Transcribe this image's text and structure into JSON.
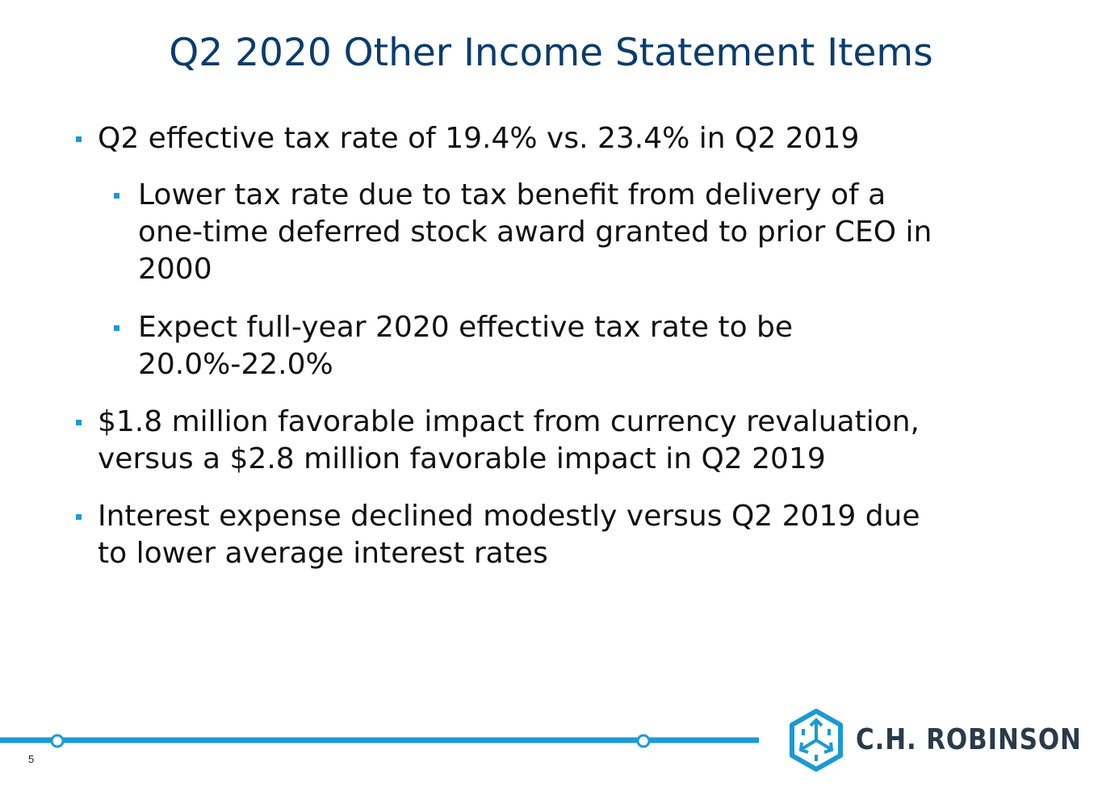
{
  "slide": {
    "title": "Q2 2020 Other Income Statement Items",
    "page_number": "5"
  },
  "bullets": [
    {
      "level": 1,
      "text": "Q2 effective tax rate of 19.4% vs. 23.4% in Q2 2019"
    },
    {
      "level": 2,
      "text": "Lower tax rate due to tax benefit from delivery of a\none-time deferred stock award granted to prior CEO in\n2000"
    },
    {
      "level": 2,
      "text": "Expect full-year 2020 effective tax rate to be\n20.0%-22.0%"
    },
    {
      "level": 1,
      "text": "$1.8 million favorable impact from currency revaluation,\nversus a $2.8 million favorable impact in Q2 2019"
    },
    {
      "level": 1,
      "text": "Interest expense declined modestly versus Q2 2019 due\nto lower average interest rates"
    }
  ],
  "logo": {
    "name": "C.H. ROBINSON",
    "icon": "ch-robinson-cube-icon",
    "trademark": "™"
  },
  "colors": {
    "title": "#0b3c6e",
    "accent": "#1a9ad6",
    "logo_text": "#2a3a4a"
  }
}
